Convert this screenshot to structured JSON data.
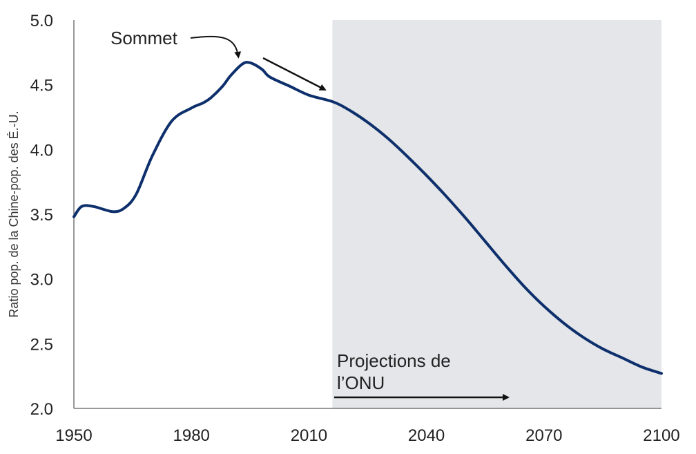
{
  "chart_data": {
    "type": "line",
    "title": "",
    "xlabel": "",
    "ylabel": "Ratio pop. de la Chine-pop. des É.-U.",
    "xlim": [
      1950,
      2100
    ],
    "ylim": [
      2.0,
      5.0
    ],
    "x_ticks": [
      "1950",
      "1980",
      "2010",
      "2040",
      "2070",
      "2100"
    ],
    "y_ticks": [
      "5.0",
      "4.5",
      "4.0",
      "3.5",
      "3.0",
      "2.5",
      "2.0"
    ],
    "grid": false,
    "colors": {
      "line": "#0d2f6b",
      "projection_shade": "#e4e6e9",
      "arrows": "#111111"
    },
    "projection_region": {
      "x_start": 2016,
      "x_end": 2100
    },
    "series": [
      {
        "x": [
          1950,
          1952,
          1955,
          1960,
          1963,
          1966,
          1970,
          1975,
          1980,
          1983,
          1985,
          1988,
          1990,
          1993,
          1995,
          1998,
          2000,
          2005,
          2010,
          2016,
          2020,
          2025,
          2030,
          2035,
          2040,
          2045,
          2050,
          2055,
          2060,
          2065,
          2070,
          2075,
          2080,
          2085,
          2090,
          2095,
          2100
        ],
        "y": [
          3.48,
          3.56,
          3.56,
          3.52,
          3.55,
          3.66,
          3.95,
          4.22,
          4.32,
          4.36,
          4.4,
          4.49,
          4.57,
          4.66,
          4.67,
          4.62,
          4.56,
          4.49,
          4.42,
          4.37,
          4.31,
          4.21,
          4.09,
          3.95,
          3.8,
          3.64,
          3.47,
          3.29,
          3.11,
          2.94,
          2.79,
          2.66,
          2.55,
          2.46,
          2.39,
          2.32,
          2.27
        ]
      }
    ],
    "annotations": {
      "peak_label": "Sommet",
      "peak_x": 1992,
      "projection_label_line1": "Projections de",
      "projection_label_line2": "l’ONU"
    }
  }
}
